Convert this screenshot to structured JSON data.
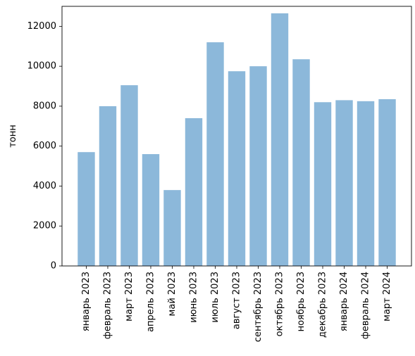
{
  "chart_data": {
    "type": "bar",
    "title": "",
    "xlabel": "",
    "ylabel": "тонн",
    "ylim": [
      0,
      13000
    ],
    "yticks": [
      0,
      2000,
      4000,
      6000,
      8000,
      10000,
      12000
    ],
    "grid": false,
    "bar_color": "#8cb8da",
    "categories": [
      "январь 2023",
      "февраль 2023",
      "март 2023",
      "апрель 2023",
      "май 2023",
      "июнь 2023",
      "июль 2023",
      "август 2023",
      "сентябрь 2023",
      "октябрь 2023",
      "ноябрь 2023",
      "декабрь 2023",
      "январь 2024",
      "февраль 2024",
      "март 2024"
    ],
    "values": [
      5700,
      8000,
      9050,
      5600,
      3800,
      7400,
      11200,
      9750,
      10000,
      12650,
      10350,
      8200,
      8300,
      8250,
      8350
    ]
  }
}
